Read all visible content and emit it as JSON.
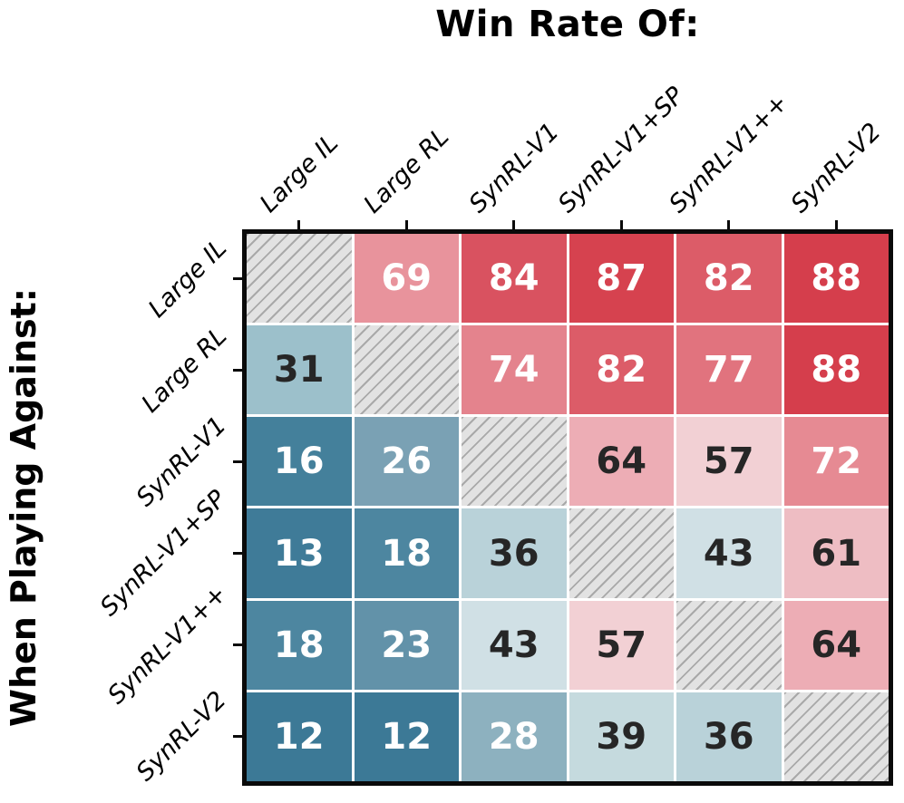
{
  "figure": {
    "background": "#ffffff",
    "border_color": "#0a0a0a",
    "gridline_color": "#ffffff"
  },
  "chart_data": {
    "type": "heatmap",
    "title": "Win Rate Of:",
    "row_axis_label": "When Playing Against:",
    "columns": [
      "Large IL",
      "Large RL",
      "SynRL-V1",
      "SynRL-V1+SP",
      "SynRL-V1++",
      "SynRL-V2"
    ],
    "rows": [
      "Large IL",
      "Large RL",
      "SynRL-V1",
      "SynRL-V1+SP",
      "SynRL-V1++",
      "SynRL-V2"
    ],
    "matrix": [
      [
        null,
        69,
        84,
        87,
        82,
        88
      ],
      [
        31,
        null,
        74,
        82,
        77,
        88
      ],
      [
        16,
        26,
        null,
        64,
        57,
        72
      ],
      [
        13,
        18,
        36,
        null,
        43,
        61
      ],
      [
        18,
        23,
        43,
        57,
        null,
        64
      ],
      [
        12,
        12,
        28,
        39,
        36,
        null
      ]
    ],
    "diagonal_cells": "hatched (no value, self vs self)",
    "colormap": {
      "name": "diverging blue-white-red",
      "low": "#3c7996",
      "mid": "#f4eceb",
      "high": "#d53e4c",
      "domain": [
        0,
        100
      ],
      "center": 50
    },
    "hatch": {
      "bg": "#e2e2e2",
      "line": "#a9a9a9",
      "angle_deg": 45
    },
    "cell_colors": [
      [
        null,
        "#e8939c",
        "#d95260",
        "#d6424f",
        "#dc5c68",
        "#d53e4c"
      ],
      [
        "#9cc0cb",
        null,
        "#e4838d",
        "#dc5c68",
        "#e1737e",
        "#d53e4c"
      ],
      [
        "#44809b",
        "#7aa1b4",
        null,
        "#edadb5",
        "#f2d0d4",
        "#e68a93"
      ],
      [
        "#3f7b98",
        "#4d86a0",
        "#b9d2d9",
        null,
        "#d0e0e5",
        "#eebdc3"
      ],
      [
        "#4d86a0",
        "#6292a9",
        "#d0e0e5",
        "#f2d0d4",
        null,
        "#edadb5"
      ],
      [
        "#3c7996",
        "#3c7996",
        "#8db1bf",
        "#c5dade",
        "#b9d2d9",
        null
      ]
    ],
    "text_colors": [
      [
        null,
        "#ffffff",
        "#ffffff",
        "#ffffff",
        "#ffffff",
        "#ffffff"
      ],
      [
        "#262626",
        null,
        "#ffffff",
        "#ffffff",
        "#ffffff",
        "#ffffff"
      ],
      [
        "#ffffff",
        "#ffffff",
        null,
        "#262626",
        "#262626",
        "#ffffff"
      ],
      [
        "#ffffff",
        "#ffffff",
        "#262626",
        null,
        "#262626",
        "#262626"
      ],
      [
        "#ffffff",
        "#ffffff",
        "#262626",
        "#262626",
        null,
        "#262626"
      ],
      [
        "#ffffff",
        "#ffffff",
        "#ffffff",
        "#262626",
        "#262626",
        null
      ]
    ],
    "legend_position": "none",
    "grid_on": true
  }
}
